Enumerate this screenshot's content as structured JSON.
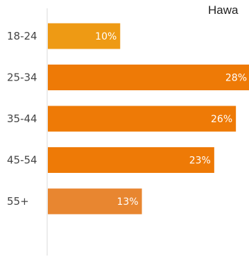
{
  "chart_data": {
    "type": "bar",
    "orientation": "horizontal",
    "title": "Hawa",
    "categories": [
      "18-24",
      "25-34",
      "35-44",
      "45-54",
      "55+"
    ],
    "values": [
      10,
      28,
      26,
      23,
      13
    ],
    "value_labels": [
      "10%",
      "28%",
      "26%",
      "23%",
      "13%"
    ],
    "xlim": [
      0,
      28
    ],
    "grid": false,
    "legend": "none",
    "colors": [
      "#EE9A14",
      "#EE7A06",
      "#EE7A06",
      "#EE7A06",
      "#E88630"
    ]
  }
}
